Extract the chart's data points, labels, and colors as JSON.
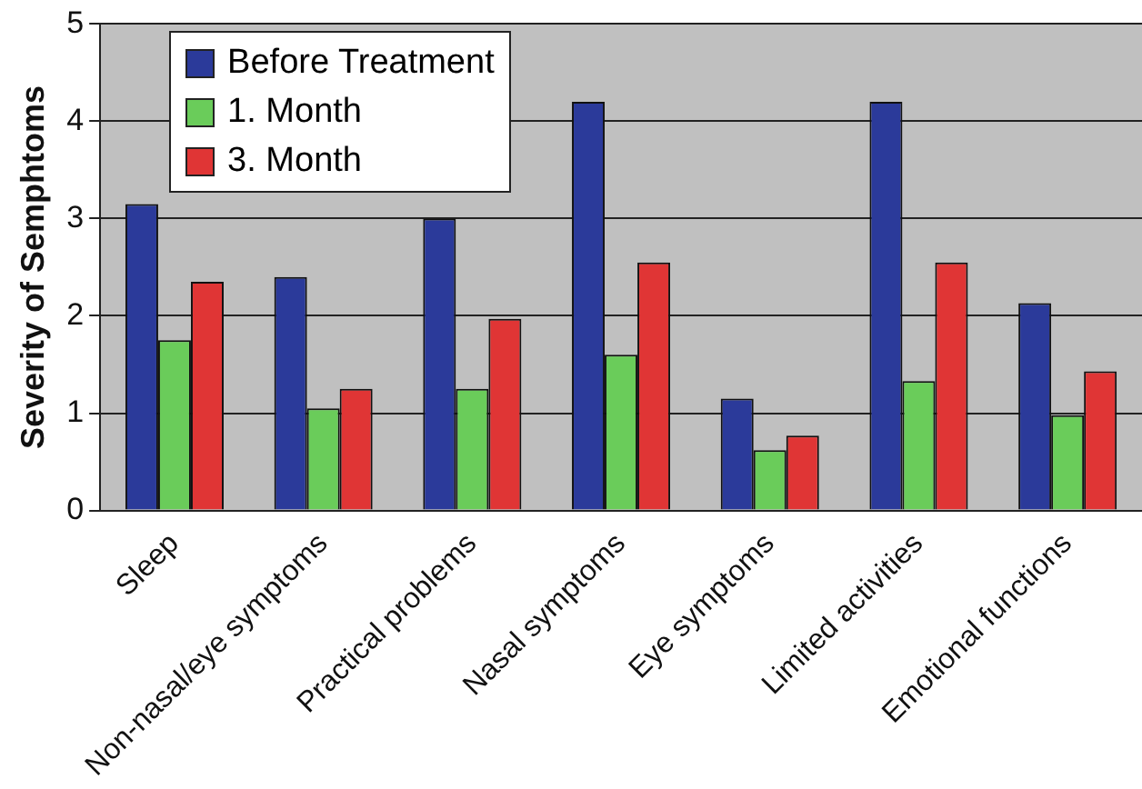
{
  "chart_data": {
    "type": "bar",
    "ylabel": "Severity of Semphtoms",
    "categories": [
      "Sleep",
      "Non-nasal/eye symptoms",
      "Practical problems",
      "Nasal symptoms",
      "Eye symptoms",
      "Limited activities",
      "Emotional functions"
    ],
    "series": [
      {
        "name": "Before Treatment",
        "color": "#2b3a9a",
        "values": [
          3.15,
          2.4,
          3.0,
          4.2,
          1.15,
          4.2,
          2.13
        ]
      },
      {
        "name": "1. Month",
        "color": "#6acc5a",
        "values": [
          1.75,
          1.05,
          1.25,
          1.6,
          0.62,
          1.33,
          0.98
        ]
      },
      {
        "name": "3. Month",
        "color": "#e03535",
        "values": [
          2.35,
          1.25,
          1.97,
          2.55,
          0.77,
          2.55,
          1.43
        ]
      }
    ],
    "ylim": [
      0,
      5
    ],
    "yticks": [
      0,
      1,
      2,
      3,
      4,
      5
    ],
    "grid": "y",
    "legend": "top left"
  }
}
